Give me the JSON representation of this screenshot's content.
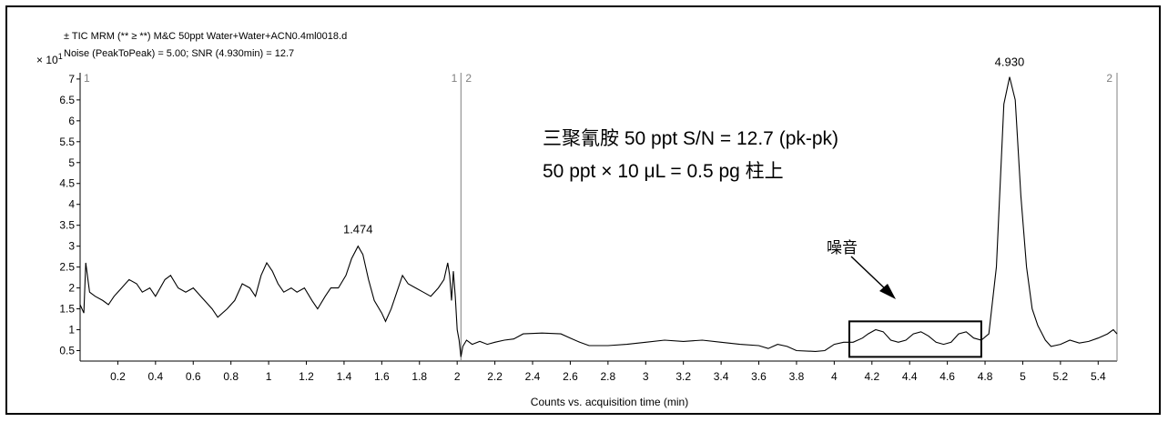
{
  "header": {
    "line1": "± TIC MRM (** ≥ **) M&C 50ppt Water+Water+ACN0.4ml0018.d",
    "line2": "Noise (PeakToPeak) = 5.00; SNR (4.930min) = 12.7",
    "multiplier": "× 10",
    "multiplier_exp": "1"
  },
  "annotations": {
    "title_line1": "三聚氰胺 50 ppt S/N = 12.7 (pk-pk)",
    "title_line2": "50 ppt × 10 μL = 0.5 pg 柱上",
    "noise_label": "噪音",
    "peak1_label": "1.474",
    "peak2_label": "4.930",
    "segment_labels": [
      "1",
      "1",
      "2",
      "2"
    ]
  },
  "chart_data": {
    "type": "line",
    "xlabel": "Counts vs. acquisition time (min)",
    "ylabel": "",
    "xlim": [
      0,
      5.5
    ],
    "ylim": [
      0.25,
      7.15
    ],
    "x_ticks": [
      0.2,
      0.4,
      0.6,
      0.8,
      1,
      1.2,
      1.4,
      1.6,
      1.8,
      2,
      2.2,
      2.4,
      2.6,
      2.8,
      3,
      3.2,
      3.4,
      3.6,
      3.8,
      4,
      4.2,
      4.4,
      4.6,
      4.8,
      5,
      5.2,
      5.4
    ],
    "y_ticks": [
      0.5,
      1,
      1.5,
      2,
      2.5,
      3,
      3.5,
      4,
      4.5,
      5,
      5.5,
      6,
      6.5,
      7
    ],
    "segment_boundary": 2.02,
    "noise_window": {
      "x": [
        4.08,
        4.78
      ],
      "y": [
        0.35,
        1.2
      ]
    },
    "series": [
      {
        "values": [
          [
            0.0,
            1.6
          ],
          [
            0.02,
            1.4
          ],
          [
            0.03,
            2.6
          ],
          [
            0.05,
            1.9
          ],
          [
            0.08,
            1.8
          ],
          [
            0.12,
            1.7
          ],
          [
            0.15,
            1.6
          ],
          [
            0.18,
            1.8
          ],
          [
            0.22,
            2.0
          ],
          [
            0.26,
            2.2
          ],
          [
            0.3,
            2.1
          ],
          [
            0.33,
            1.9
          ],
          [
            0.37,
            2.0
          ],
          [
            0.4,
            1.8
          ],
          [
            0.45,
            2.2
          ],
          [
            0.48,
            2.3
          ],
          [
            0.52,
            2.0
          ],
          [
            0.56,
            1.9
          ],
          [
            0.6,
            2.0
          ],
          [
            0.64,
            1.8
          ],
          [
            0.7,
            1.5
          ],
          [
            0.73,
            1.3
          ],
          [
            0.78,
            1.5
          ],
          [
            0.82,
            1.7
          ],
          [
            0.86,
            2.1
          ],
          [
            0.9,
            2.0
          ],
          [
            0.93,
            1.8
          ],
          [
            0.96,
            2.3
          ],
          [
            0.99,
            2.6
          ],
          [
            1.02,
            2.4
          ],
          [
            1.05,
            2.1
          ],
          [
            1.08,
            1.9
          ],
          [
            1.12,
            2.0
          ],
          [
            1.15,
            1.9
          ],
          [
            1.19,
            2.0
          ],
          [
            1.23,
            1.7
          ],
          [
            1.26,
            1.5
          ],
          [
            1.3,
            1.8
          ],
          [
            1.33,
            2.0
          ],
          [
            1.37,
            2.0
          ],
          [
            1.41,
            2.3
          ],
          [
            1.44,
            2.7
          ],
          [
            1.474,
            3.0
          ],
          [
            1.5,
            2.8
          ],
          [
            1.53,
            2.2
          ],
          [
            1.56,
            1.7
          ],
          [
            1.6,
            1.4
          ],
          [
            1.62,
            1.2
          ],
          [
            1.65,
            1.5
          ],
          [
            1.68,
            1.9
          ],
          [
            1.71,
            2.3
          ],
          [
            1.74,
            2.1
          ],
          [
            1.78,
            2.0
          ],
          [
            1.82,
            1.9
          ],
          [
            1.86,
            1.8
          ],
          [
            1.9,
            2.0
          ],
          [
            1.93,
            2.2
          ],
          [
            1.95,
            2.6
          ],
          [
            1.96,
            2.3
          ],
          [
            1.97,
            1.7
          ],
          [
            1.98,
            2.4
          ],
          [
            1.99,
            1.8
          ],
          [
            2.0,
            1.0
          ],
          [
            2.01,
            0.75
          ],
          [
            2.02,
            0.35
          ],
          [
            2.03,
            0.6
          ],
          [
            2.05,
            0.75
          ],
          [
            2.08,
            0.65
          ],
          [
            2.12,
            0.72
          ],
          [
            2.16,
            0.65
          ],
          [
            2.2,
            0.7
          ],
          [
            2.25,
            0.75
          ],
          [
            2.3,
            0.78
          ],
          [
            2.35,
            0.9
          ],
          [
            2.45,
            0.92
          ],
          [
            2.55,
            0.9
          ],
          [
            2.6,
            0.8
          ],
          [
            2.65,
            0.7
          ],
          [
            2.7,
            0.62
          ],
          [
            2.8,
            0.62
          ],
          [
            2.9,
            0.65
          ],
          [
            3.0,
            0.7
          ],
          [
            3.1,
            0.75
          ],
          [
            3.2,
            0.72
          ],
          [
            3.3,
            0.75
          ],
          [
            3.4,
            0.7
          ],
          [
            3.5,
            0.65
          ],
          [
            3.6,
            0.62
          ],
          [
            3.65,
            0.55
          ],
          [
            3.7,
            0.65
          ],
          [
            3.75,
            0.6
          ],
          [
            3.8,
            0.5
          ],
          [
            3.9,
            0.48
          ],
          [
            3.95,
            0.5
          ],
          [
            4.0,
            0.65
          ],
          [
            4.05,
            0.7
          ],
          [
            4.1,
            0.7
          ],
          [
            4.15,
            0.8
          ],
          [
            4.18,
            0.9
          ],
          [
            4.22,
            1.0
          ],
          [
            4.26,
            0.95
          ],
          [
            4.3,
            0.75
          ],
          [
            4.34,
            0.7
          ],
          [
            4.38,
            0.75
          ],
          [
            4.42,
            0.9
          ],
          [
            4.46,
            0.95
          ],
          [
            4.5,
            0.85
          ],
          [
            4.54,
            0.7
          ],
          [
            4.58,
            0.65
          ],
          [
            4.62,
            0.7
          ],
          [
            4.66,
            0.9
          ],
          [
            4.7,
            0.95
          ],
          [
            4.74,
            0.8
          ],
          [
            4.78,
            0.75
          ],
          [
            4.82,
            0.9
          ],
          [
            4.86,
            2.5
          ],
          [
            4.9,
            6.4
          ],
          [
            4.93,
            7.05
          ],
          [
            4.96,
            6.5
          ],
          [
            4.99,
            4.2
          ],
          [
            5.02,
            2.5
          ],
          [
            5.05,
            1.5
          ],
          [
            5.08,
            1.1
          ],
          [
            5.12,
            0.75
          ],
          [
            5.15,
            0.6
          ],
          [
            5.2,
            0.65
          ],
          [
            5.25,
            0.75
          ],
          [
            5.3,
            0.68
          ],
          [
            5.35,
            0.72
          ],
          [
            5.4,
            0.8
          ],
          [
            5.45,
            0.9
          ],
          [
            5.48,
            1.0
          ],
          [
            5.5,
            0.9
          ]
        ]
      }
    ]
  }
}
